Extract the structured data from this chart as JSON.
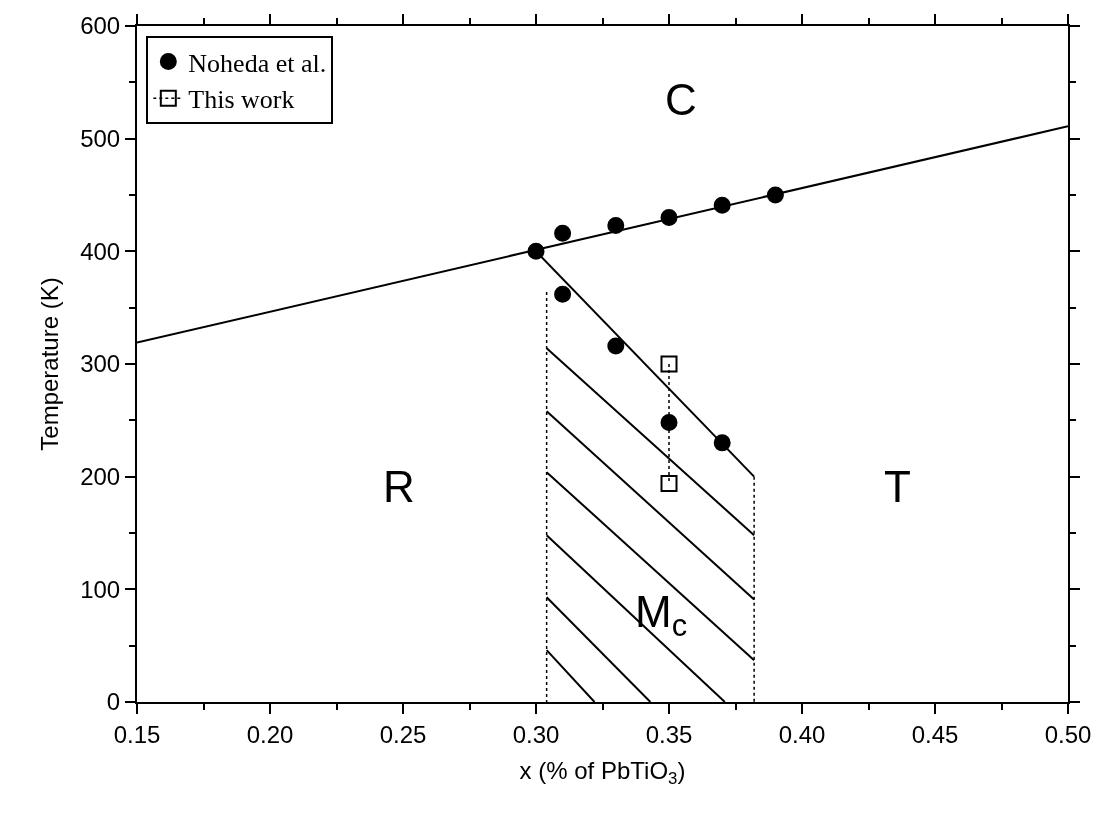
{
  "chart_data": {
    "type": "line",
    "xlabel": "x (% of PbTiO$_{3}$)",
    "ylabel": "Temperature (K)",
    "xlim": [
      0.15,
      0.5
    ],
    "xticks": [
      {
        "value": 0.15,
        "label": "0.15"
      },
      {
        "value": 0.2,
        "label": "0.20"
      },
      {
        "value": 0.25,
        "label": "0.25"
      },
      {
        "value": 0.3,
        "label": "0.30"
      },
      {
        "value": 0.35,
        "label": "0.35"
      },
      {
        "value": 0.4,
        "label": "0.40"
      },
      {
        "value": 0.45,
        "label": "0.45"
      },
      {
        "value": 0.5,
        "label": "0.50"
      }
    ],
    "ylim": [
      0,
      600
    ],
    "yticks": [
      0,
      100,
      200,
      300,
      400,
      500,
      600
    ],
    "legend": "top left",
    "series": [
      {
        "name": "Noheda et al.",
        "type": "scatter",
        "marker": "circle",
        "color": "#000000",
        "x": [
          0.3,
          0.31,
          0.33,
          0.35,
          0.37,
          0.39,
          0.31,
          0.33,
          0.35,
          0.37
        ],
        "values": [
          400,
          416,
          423,
          430,
          441,
          450,
          362,
          316,
          248,
          230
        ]
      },
      {
        "name": "This work",
        "type": "line",
        "line_style": "dotted",
        "marker": "square",
        "color": "#000000",
        "x": [
          0.35,
          0.35
        ],
        "values": [
          300,
          194
        ]
      },
      {
        "color": "#000000",
        "x": [
          0.15,
          0.5
        ],
        "values": [
          319,
          511
        ]
      },
      {
        "color": "#000000",
        "x": [
          0.3,
          0.382
        ],
        "values": [
          400,
          200
        ]
      },
      {
        "line_style": "dotted",
        "color": "#000000",
        "x": [
          0.304,
          0.304
        ],
        "values": [
          364,
          0
        ]
      },
      {
        "line_style": "dotted",
        "color": "#000000",
        "x": [
          0.382,
          0.382
        ],
        "values": [
          200,
          0
        ]
      },
      {
        "color": "#000000",
        "x": [
          0.304,
          0.382
        ],
        "values": [
          314,
          148
        ]
      },
      {
        "color": "#000000",
        "x": [
          0.304,
          0.382
        ],
        "values": [
          258,
          91
        ]
      },
      {
        "color": "#000000",
        "x": [
          0.304,
          0.382
        ],
        "values": [
          204,
          37
        ]
      },
      {
        "color": "#000000",
        "x": [
          0.304,
          0.371
        ],
        "values": [
          148,
          0
        ]
      },
      {
        "color": "#000000",
        "x": [
          0.304,
          0.343
        ],
        "values": [
          93,
          0
        ]
      },
      {
        "color": "#000000",
        "x": [
          0.304,
          0.322
        ],
        "values": [
          46,
          0
        ]
      }
    ],
    "annotations": [
      "C",
      "R",
      "T",
      "M$_{c}$"
    ]
  }
}
